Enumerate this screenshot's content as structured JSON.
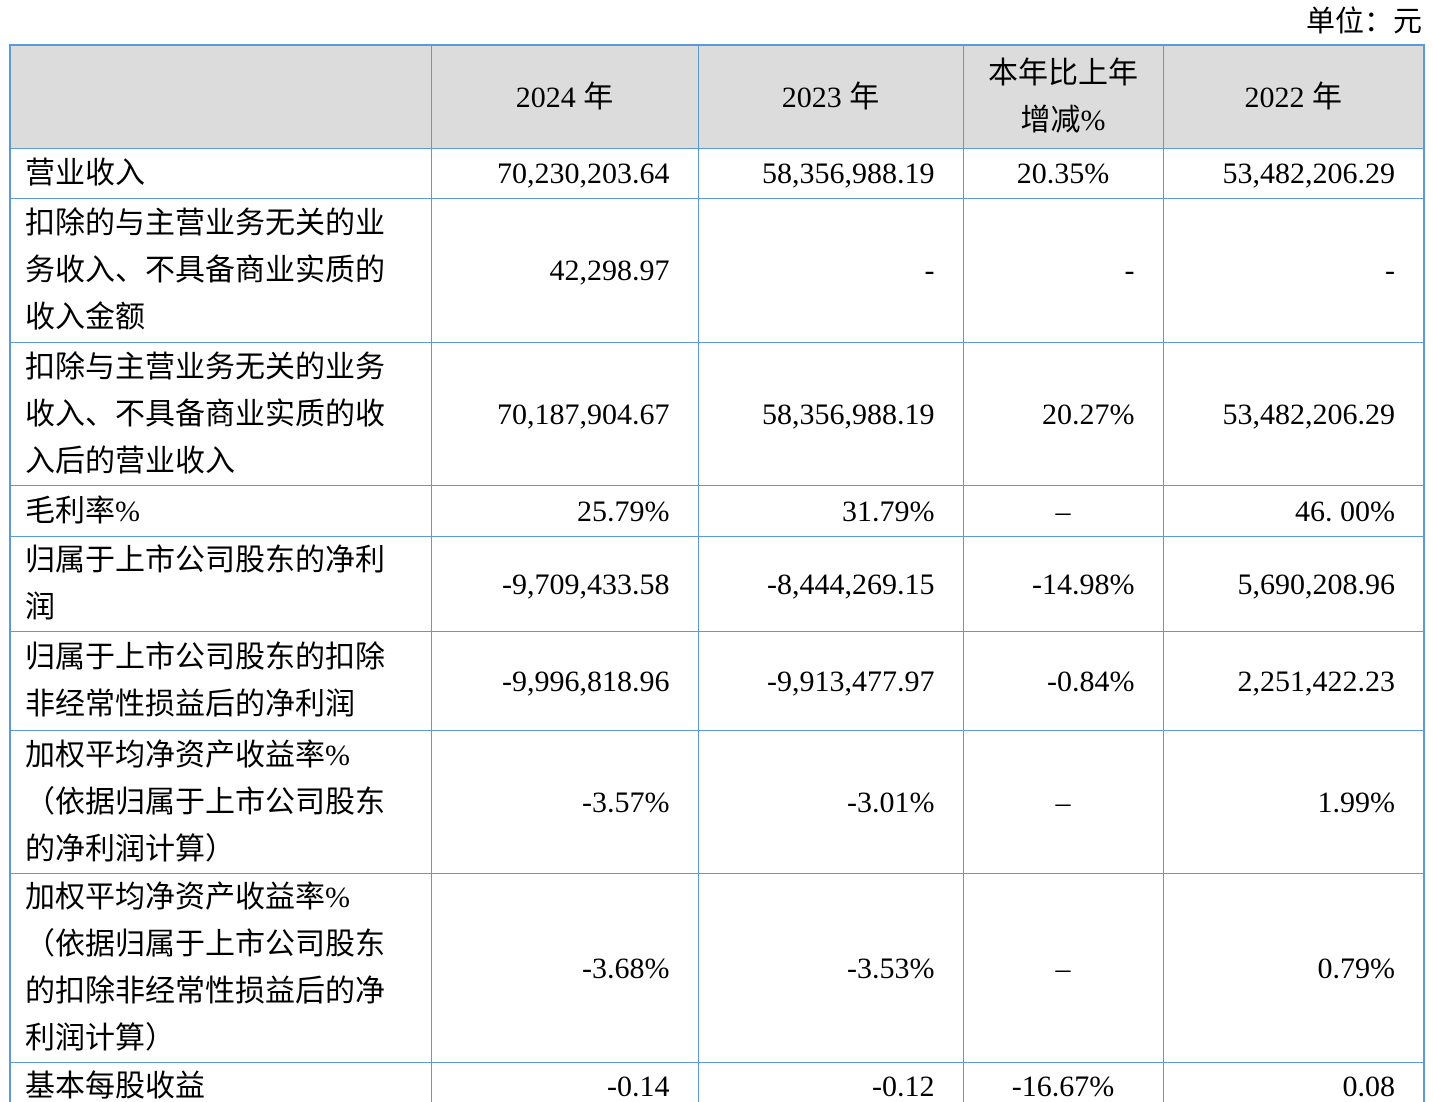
{
  "unit_label": "单位：元",
  "colors": {
    "border_blue": "#5B9BD5",
    "header_gray": "#DCDCDC",
    "text": "#000000"
  },
  "table": {
    "header": {
      "col_item": "",
      "col_2024": "2024 年",
      "col_2023": "2023 年",
      "col_change": "本年比上年\n增减%",
      "col_2022": "2022 年"
    },
    "rows": [
      {
        "label": "营业收入",
        "v2024": "70,230,203.64",
        "v2023": "58,356,988.19",
        "change": "20.35%",
        "v2022": "53,482,206.29"
      },
      {
        "label": "扣除的与主营业务无关的业务收入、不具备商业实质的收入金额",
        "v2024": "42,298.97",
        "v2023": "-",
        "change": "-",
        "v2022": "-"
      },
      {
        "label": "扣除与主营业务无关的业务收入、不具备商业实质的收入后的营业收入",
        "v2024": "70,187,904.67",
        "v2023": "58,356,988.19",
        "change": "20.27%",
        "v2022": "53,482,206.29"
      },
      {
        "label": "毛利率%",
        "v2024": "25.79%",
        "v2023": "31.79%",
        "change": "–",
        "v2022": "46. 00%"
      },
      {
        "label": "归属于上市公司股东的净利润",
        "v2024": "-9,709,433.58",
        "v2023": "-8,444,269.15",
        "change": "-14.98%",
        "v2022": "5,690,208.96"
      },
      {
        "label": "归属于上市公司股东的扣除非经常性损益后的净利润",
        "v2024": "-9,996,818.96",
        "v2023": "-9,913,477.97",
        "change": "-0.84%",
        "v2022": "2,251,422.23"
      },
      {
        "label": "加权平均净资产收益率%（依据归属于上市公司股东的净利润计算）",
        "v2024": "-3.57%",
        "v2023": "-3.01%",
        "change": "–",
        "v2022": "1.99%"
      },
      {
        "label": "加权平均净资产收益率%（依据归属于上市公司股东的扣除非经常性损益后的净利润计算）",
        "v2024": "-3.68%",
        "v2023": "-3.53%",
        "change": "–",
        "v2022": "0.79%"
      },
      {
        "label": "基本每股收益",
        "v2024": "-0.14",
        "v2023": "-0.12",
        "change": "-16.67%",
        "v2022": "0.08"
      }
    ]
  }
}
